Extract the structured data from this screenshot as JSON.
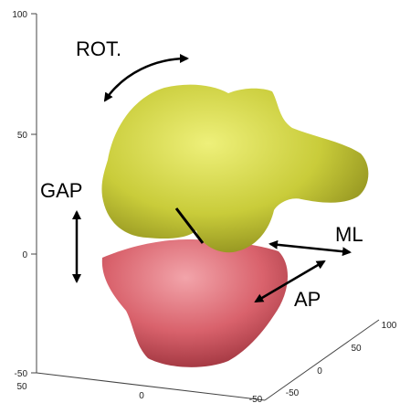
{
  "axes": {
    "vertical_ticks": [
      "100",
      "50",
      "0",
      "-50"
    ],
    "front_ticks": [
      "50",
      "0",
      "-50"
    ],
    "depth_ticks": [
      "-50",
      "0",
      "50",
      "100"
    ]
  },
  "labels": {
    "rotation": "ROT.",
    "gap": "GAP",
    "medio_lateral": "ML",
    "antero_posterior": "AP"
  }
}
